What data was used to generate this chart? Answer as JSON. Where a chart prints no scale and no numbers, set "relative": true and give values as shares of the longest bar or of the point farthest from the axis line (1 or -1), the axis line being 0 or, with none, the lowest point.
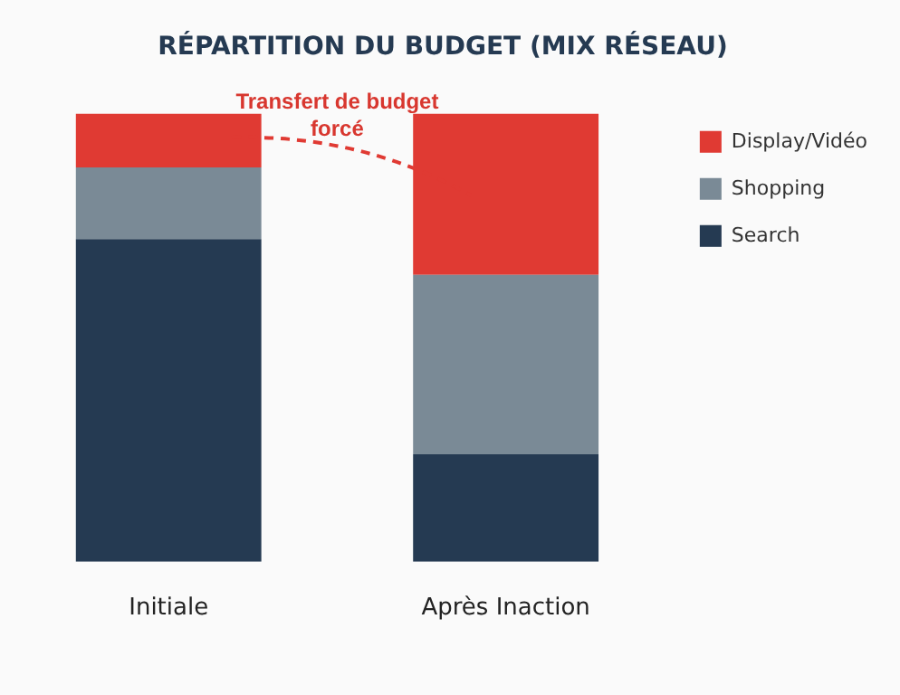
{
  "chart_data": {
    "type": "bar",
    "title": "RÉPARTITION DU BUDGET (MIX RÉSEAU)",
    "categories": [
      "Initiale",
      "Après Inaction"
    ],
    "series": [
      {
        "name": "Search",
        "color": "#253a52",
        "values": [
          0.72,
          0.24
        ]
      },
      {
        "name": "Shopping",
        "color": "#7a8a96",
        "values": [
          0.16,
          0.4
        ]
      },
      {
        "name": "Display/Vidéo",
        "color": "#e03a33",
        "values": [
          0.12,
          0.36
        ]
      }
    ],
    "stacked": true,
    "relative": true,
    "legend": "right",
    "tick_labels": "x",
    "annotations": [
      "Transfert de budget forcé"
    ]
  }
}
